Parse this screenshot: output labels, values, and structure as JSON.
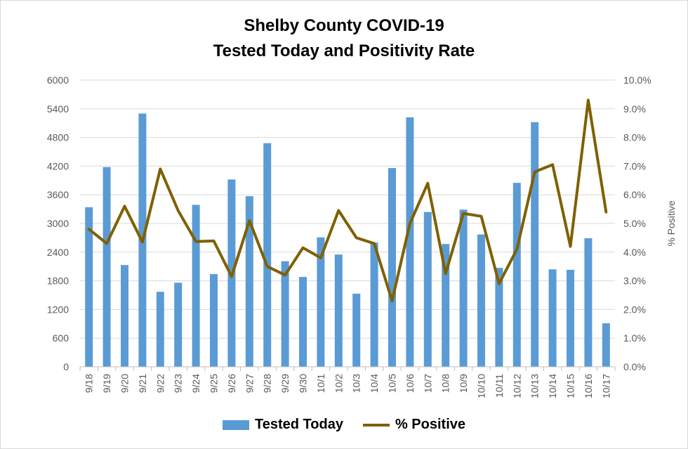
{
  "chart_title_line1": "Shelby County COVID-19",
  "chart_title_line2": "Tested Today and Positivity Rate",
  "colors": {
    "bars": "#5b9bd5",
    "line": "#7f6000",
    "grid": "#d9d9d9",
    "tick_text": "#595959"
  },
  "chart_data": {
    "type": "bar+line",
    "categories": [
      "9/18",
      "9/19",
      "9/20",
      "9/21",
      "9/22",
      "9/23",
      "9/24",
      "9/25",
      "9/26",
      "9/27",
      "9/28",
      "9/29",
      "9/30",
      "10/1",
      "10/2",
      "10/3",
      "10/4",
      "10/5",
      "10/6",
      "10/7",
      "10/8",
      "10/9",
      "10/10",
      "10/11",
      "10/12",
      "10/13",
      "10/14",
      "10/15",
      "10/16",
      "10/17"
    ],
    "series": [
      {
        "name": "Tested Today",
        "type": "bar",
        "axis": "left",
        "values": [
          3340,
          4180,
          2130,
          5300,
          1570,
          1760,
          3390,
          1940,
          3920,
          3570,
          4680,
          2210,
          1880,
          2710,
          2350,
          1530,
          2600,
          4160,
          5220,
          3240,
          2570,
          3290,
          2770,
          2070,
          3850,
          5120,
          2040,
          2030,
          2690,
          910
        ]
      },
      {
        "name": "% Positive",
        "type": "line",
        "axis": "right",
        "values": [
          4.8,
          4.3,
          5.6,
          4.35,
          6.9,
          5.45,
          4.37,
          4.39,
          3.15,
          5.1,
          3.5,
          3.2,
          4.15,
          3.8,
          5.45,
          4.5,
          4.3,
          2.3,
          5.0,
          6.4,
          3.25,
          5.35,
          5.25,
          2.9,
          4.1,
          6.8,
          7.05,
          4.2,
          9.3,
          5.4
        ]
      }
    ],
    "y_left": {
      "min": 0,
      "max": 6000,
      "ticks": [
        "0",
        "600",
        "1200",
        "1800",
        "2400",
        "3000",
        "3600",
        "4200",
        "4800",
        "5400",
        "6000"
      ]
    },
    "y_right": {
      "min": 0,
      "max": 10,
      "label": "% Positive",
      "ticks": [
        "0.0%",
        "1.0%",
        "2.0%",
        "3.0%",
        "4.0%",
        "5.0%",
        "6.0%",
        "7.0%",
        "8.0%",
        "9.0%",
        "10.0%"
      ]
    },
    "grid": true,
    "legend_position": "bottom"
  },
  "legend": {
    "bar_label": "Tested Today",
    "line_label": "% Positive"
  }
}
